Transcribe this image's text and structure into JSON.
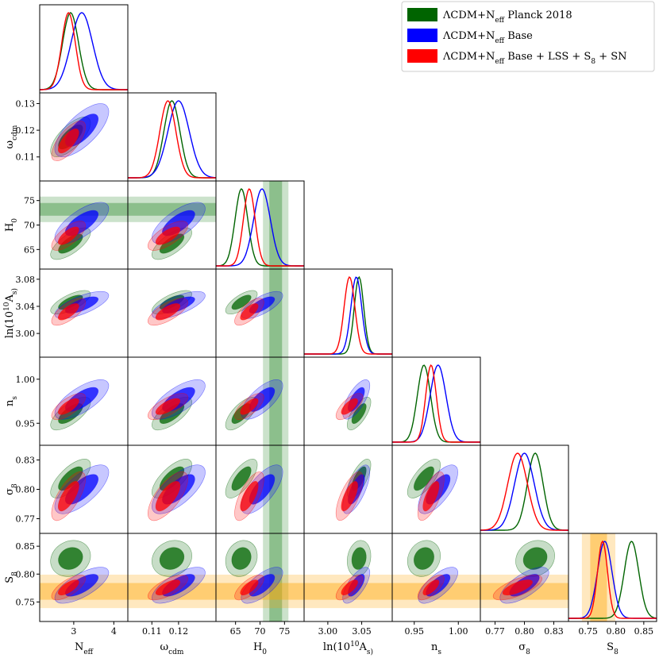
{
  "chart_data": {
    "type": "corner",
    "parameters": [
      {
        "key": "Neff",
        "label": "N_eff",
        "range": [
          2.15,
          4.35
        ],
        "ticks": [
          3,
          4
        ],
        "tick_labels": [
          "3",
          "4"
        ]
      },
      {
        "key": "wcdm",
        "label": "ω_cdm",
        "range": [
          0.101,
          0.134
        ],
        "ticks": [
          0.11,
          0.12
        ],
        "tick_labels": [
          "0.11",
          "0.12"
        ]
      },
      {
        "key": "H0",
        "label": "H_0",
        "range": [
          61.0,
          79.0
        ],
        "ticks": [
          65,
          70,
          75
        ],
        "tick_labels": [
          "65",
          "70",
          "75"
        ]
      },
      {
        "key": "lnAs",
        "label": "ln(10^10 A_s)",
        "range": [
          2.965,
          3.095
        ],
        "ticks": [
          3.0,
          3.05
        ],
        "tick_labels": [
          "3.00",
          "3.05"
        ]
      },
      {
        "key": "ns",
        "label": "n_s",
        "range": [
          0.925,
          1.025
        ],
        "ticks": [
          0.95,
          1.0
        ],
        "tick_labels": [
          "0.95",
          "1.00"
        ]
      },
      {
        "key": "sigma8",
        "label": "σ_8",
        "range": [
          0.755,
          0.845
        ],
        "ticks": [
          0.77,
          0.8,
          0.83
        ],
        "tick_labels": [
          "0.77",
          "0.80",
          "0.83"
        ]
      },
      {
        "key": "S8",
        "label": "S_8",
        "range": [
          0.715,
          0.873
        ],
        "ticks": [
          0.75,
          0.8,
          0.85
        ],
        "tick_labels": [
          "0.75",
          "0.80",
          "0.85"
        ]
      }
    ],
    "y_ticks": {
      "wcdm": {
        "ticks": [
          0.11,
          0.12,
          0.13
        ],
        "tick_labels": [
          "0.11",
          "0.12",
          "0.13"
        ]
      },
      "H0": {
        "ticks": [
          65,
          70,
          75
        ],
        "tick_labels": [
          "65",
          "70",
          "75"
        ]
      },
      "lnAs": {
        "ticks": [
          3.0,
          3.04,
          3.08
        ],
        "tick_labels": [
          "3.00",
          "3.04",
          "3.08"
        ]
      },
      "ns": {
        "ticks": [
          0.95,
          1.0
        ],
        "tick_labels": [
          "0.95",
          "1.00"
        ]
      },
      "sigma8": {
        "ticks": [
          0.77,
          0.8,
          0.83
        ],
        "tick_labels": [
          "0.77",
          "0.80",
          "0.83"
        ]
      },
      "S8": {
        "ticks": [
          0.75,
          0.8,
          0.85
        ],
        "tick_labels": [
          "0.75",
          "0.80",
          "0.85"
        ]
      }
    },
    "series": [
      {
        "name": "ΛCDM+N_eff Planck 2018",
        "color": "#006400",
        "mean": {
          "Neff": 2.92,
          "wcdm": 0.1175,
          "H0": 66.2,
          "lnAs": 3.046,
          "ns": 0.961,
          "sigma8": 0.811,
          "S8": 0.828
        },
        "sigma": {
          "Neff": 0.2,
          "wcdm": 0.003,
          "H0": 1.3,
          "lnAs": 0.007,
          "ns": 0.0075,
          "sigma8": 0.008,
          "S8": 0.013
        }
      },
      {
        "name": "ΛCDM+N_eff Base",
        "color": "#0000ff",
        "mean": {
          "Neff": 3.2,
          "wcdm": 0.12,
          "H0": 70.4,
          "lnAs": 3.042,
          "ns": 0.977,
          "sigma8": 0.8,
          "S8": 0.78
        },
        "sigma": {
          "Neff": 0.27,
          "wcdm": 0.004,
          "H0": 1.7,
          "lnAs": 0.008,
          "ns": 0.009,
          "sigma8": 0.01,
          "S8": 0.013
        }
      },
      {
        "name": "ΛCDM+N_eff Base + LSS + S_8 + SN",
        "color": "#ff0000",
        "mean": {
          "Neff": 2.87,
          "wcdm": 0.116,
          "H0": 67.8,
          "lnAs": 3.032,
          "ns": 0.969,
          "sigma8": 0.793,
          "S8": 0.776
        },
        "sigma": {
          "Neff": 0.17,
          "wcdm": 0.003,
          "H0": 1.2,
          "lnAs": 0.008,
          "ns": 0.006,
          "sigma8": 0.01,
          "S8": 0.009
        }
      }
    ],
    "priors": [
      {
        "param": "H0",
        "center": 73.2,
        "sigma": 1.3,
        "color": "#2e8b2e"
      },
      {
        "param": "S8",
        "center": 0.769,
        "sigma": 0.015,
        "color": "#ffa500"
      }
    ],
    "legend_position": "top-right"
  }
}
